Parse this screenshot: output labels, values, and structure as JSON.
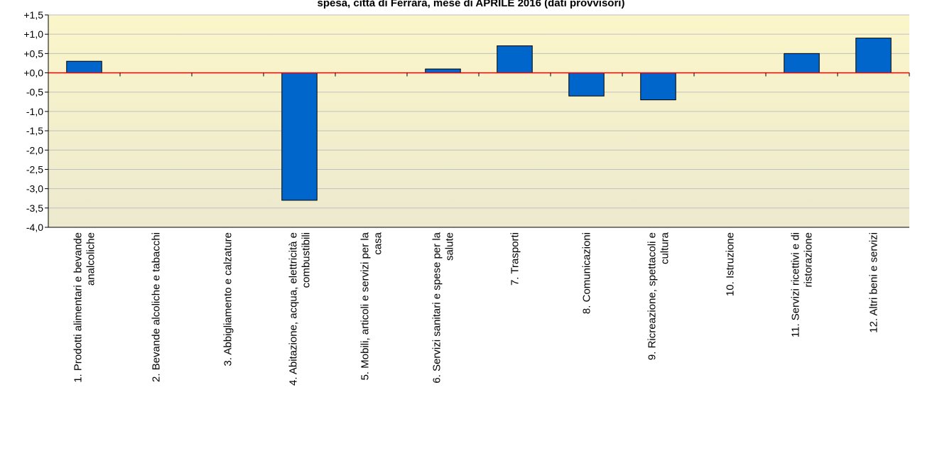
{
  "chart_data": {
    "type": "bar",
    "title": "spesa, città di Ferrara, mese di APRILE 2016 (dati provvisori)",
    "xlabel": "",
    "ylabel": "",
    "ylim": [
      -4.0,
      1.5
    ],
    "yticks": [
      "+1,5",
      "+1,0",
      "+0,5",
      "+0,0",
      "-0,5",
      "-1,0",
      "-1,5",
      "-2,0",
      "-2,5",
      "-3,0",
      "-3,5",
      "-4,0"
    ],
    "ytick_values": [
      1.5,
      1.0,
      0.5,
      0.0,
      -0.5,
      -1.0,
      -1.5,
      -2.0,
      -2.5,
      -3.0,
      -3.5,
      -4.0
    ],
    "grid": true,
    "legend": "none",
    "categories": [
      [
        "1. Prodotti alimentari e bevande",
        "analcoliche"
      ],
      [
        "2. Bevande alcoliche e tabacchi"
      ],
      [
        "3. Abbigliamento e calzature"
      ],
      [
        "4. Abitazione, acqua, elettricità e",
        "combustibili"
      ],
      [
        "5. Mobili, articoli e servizi per la",
        "casa"
      ],
      [
        "6. Servizi sanitari e spese per la",
        "salute"
      ],
      [
        "7. Trasporti"
      ],
      [
        "8. Comunicazioni"
      ],
      [
        "9. Ricreazione, spettacoli e",
        "cultura"
      ],
      [
        "10. Istruzione"
      ],
      [
        "11. Servizi ricettivi e di",
        "ristorazione"
      ],
      [
        "12. Altri beni e servizi"
      ]
    ],
    "values": [
      0.3,
      0.0,
      0.0,
      -3.3,
      0.0,
      0.1,
      0.7,
      -0.6,
      -0.7,
      0.0,
      0.5,
      0.9
    ],
    "colors": {
      "bar": "#0066cc",
      "bar_stroke": "#000000",
      "zero_line": "#ff0000",
      "grid": "#bfbfbf",
      "plot_top": "#fbf6c9",
      "plot_bottom": "#ece9cf"
    }
  }
}
